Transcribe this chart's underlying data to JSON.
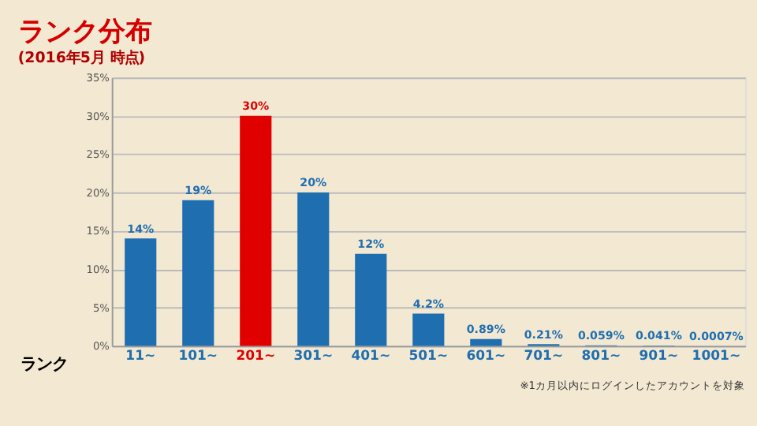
{
  "chart_data": {
    "type": "bar",
    "title": "ランク分布",
    "subtitle": "(2016年5月 時点)",
    "xlabel": "ランク",
    "categories": [
      "11~",
      "101~",
      "201~",
      "301~",
      "401~",
      "501~",
      "601~",
      "701~",
      "801~",
      "901~",
      "1001~"
    ],
    "values": [
      14,
      19,
      30,
      20,
      12,
      4.2,
      0.89,
      0.21,
      0.059,
      0.041,
      0.0007
    ],
    "value_labels": [
      "14%",
      "19%",
      "30%",
      "20%",
      "12%",
      "4.2%",
      "0.89%",
      "0.21%",
      "0.059%",
      "0.041%",
      "0.0007%"
    ],
    "colors": [
      "#1f6eb0",
      "#1f6eb0",
      "#e00000",
      "#1f6eb0",
      "#1f6eb0",
      "#1f6eb0",
      "#1f6eb0",
      "#1f6eb0",
      "#1f6eb0",
      "#1f6eb0",
      "#1f6eb0"
    ],
    "ylim": [
      0,
      35
    ],
    "yticks": [
      {
        "value": 0,
        "label": "0%"
      },
      {
        "value": 5,
        "label": "5%"
      },
      {
        "value": 10,
        "label": "10%"
      },
      {
        "value": 15,
        "label": "15%"
      },
      {
        "value": 20,
        "label": "20%"
      },
      {
        "value": 25,
        "label": "25%"
      },
      {
        "value": 30,
        "label": "30%"
      },
      {
        "value": 35,
        "label": "35%"
      }
    ],
    "grid": "y",
    "annotations": [
      "※1カ月以内にログインしたアカウントを対象"
    ]
  }
}
